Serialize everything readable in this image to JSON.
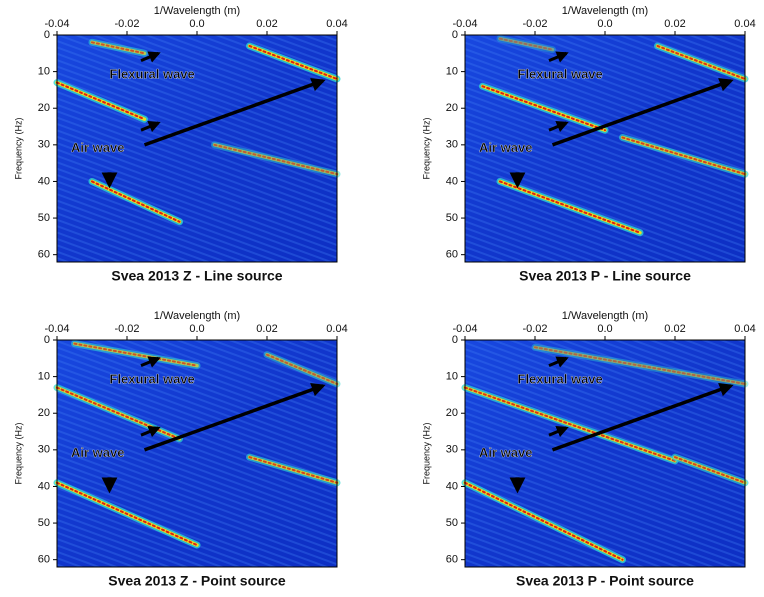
{
  "chart_data": [
    {
      "type": "heatmap",
      "title": "Svea 2013 Z - Line source",
      "xlabel": "1/Wavelength (m)",
      "ylabel": "Frequency (Hz)",
      "xlim": [
        -0.04,
        0.04
      ],
      "xticks": [
        -0.04,
        -0.02,
        {
          "value": 0,
          "label": "0.0"
        },
        0.02,
        0.04
      ],
      "ylim": [
        0,
        62
      ],
      "yticks": [
        0,
        10,
        20,
        30,
        40,
        50,
        60
      ],
      "y_inverted": true,
      "annotations": [
        "Flexural wave",
        "Air wave"
      ]
    },
    {
      "type": "heatmap",
      "title": "Svea 2013 P - Line source",
      "xlabel": "1/Wavelength (m)",
      "ylabel": "Frequency (Hz)",
      "xlim": [
        -0.04,
        0.04
      ],
      "xticks": [
        -0.04,
        -0.02,
        {
          "value": 0,
          "label": "0.0"
        },
        0.02,
        0.04
      ],
      "ylim": [
        0,
        62
      ],
      "yticks": [
        0,
        10,
        20,
        30,
        40,
        50,
        60
      ],
      "y_inverted": true,
      "annotations": [
        "Flexural wave",
        "Air wave"
      ]
    },
    {
      "type": "heatmap",
      "title": "Svea 2013 Z - Point source",
      "xlabel": "1/Wavelength (m)",
      "ylabel": "Frequency (Hz)",
      "xlim": [
        -0.04,
        0.04
      ],
      "xticks": [
        -0.04,
        -0.02,
        {
          "value": 0,
          "label": "0.0"
        },
        0.02,
        0.04
      ],
      "ylim": [
        0,
        62
      ],
      "yticks": [
        0,
        10,
        20,
        30,
        40,
        50,
        60
      ],
      "y_inverted": true,
      "annotations": [
        "Flexural wave",
        "Air wave"
      ]
    },
    {
      "type": "heatmap",
      "title": "Svea 2013 P - Point source",
      "xlabel": "1/Wavelength (m)",
      "ylabel": "Frequency (Hz)",
      "xlim": [
        -0.04,
        0.04
      ],
      "xticks": [
        -0.04,
        -0.02,
        {
          "value": 0,
          "label": "0.0"
        },
        0.02,
        0.04
      ],
      "ylim": [
        0,
        62
      ],
      "yticks": [
        0,
        10,
        20,
        30,
        40,
        50,
        60
      ],
      "y_inverted": true,
      "annotations": [
        "Flexural wave",
        "Air wave"
      ]
    }
  ]
}
